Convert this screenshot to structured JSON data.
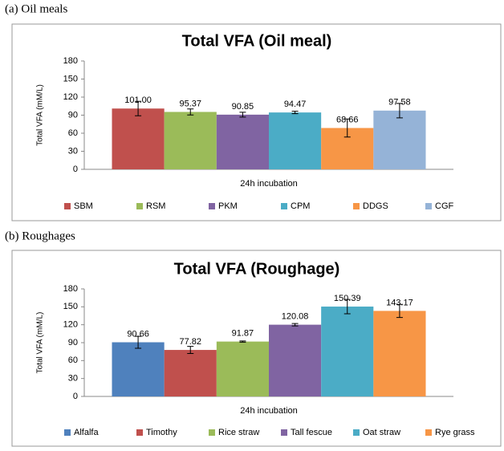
{
  "chart_data": [
    {
      "type": "bar",
      "panel_label": "(a)  Oil meals",
      "title": "Total VFA (Oil meal)",
      "y_label": "Total VFA (mM/L)",
      "categories": [
        "24h incubation"
      ],
      "ylim": [
        0,
        180
      ],
      "yticks": [
        0,
        30,
        60,
        90,
        120,
        150,
        180
      ],
      "series": [
        {
          "name": "SBM",
          "color": "#c0504d",
          "values": [
            101.0
          ],
          "errors": [
            12
          ],
          "value_labels": [
            "101.00"
          ]
        },
        {
          "name": "RSM",
          "color": "#9bbb59",
          "values": [
            95.37
          ],
          "errors": [
            5
          ],
          "value_labels": [
            "95.37"
          ]
        },
        {
          "name": "PKM",
          "color": "#8064a2",
          "values": [
            90.85
          ],
          "errors": [
            4
          ],
          "value_labels": [
            "90.85"
          ]
        },
        {
          "name": "CPM",
          "color": "#4bacc6",
          "values": [
            94.47
          ],
          "errors": [
            2
          ],
          "value_labels": [
            "94.47"
          ]
        },
        {
          "name": "DDGS",
          "color": "#f79646",
          "values": [
            68.66
          ],
          "errors": [
            15
          ],
          "value_labels": [
            "68.66"
          ]
        },
        {
          "name": "CGF",
          "color": "#95b3d7",
          "values": [
            97.58
          ],
          "errors": [
            12
          ],
          "value_labels": [
            "97.58"
          ]
        }
      ]
    },
    {
      "type": "bar",
      "panel_label": "(b)  Roughages",
      "title": "Total VFA (Roughage)",
      "y_label": "Total VFA (mM/L)",
      "categories": [
        "24h incubation"
      ],
      "ylim": [
        0,
        180
      ],
      "yticks": [
        0,
        30,
        60,
        90,
        120,
        150,
        180
      ],
      "series": [
        {
          "name": "Alfalfa",
          "color": "#4f81bd",
          "values": [
            90.66
          ],
          "errors": [
            10
          ],
          "value_labels": [
            "90.66"
          ]
        },
        {
          "name": "Timothy",
          "color": "#c0504d",
          "values": [
            77.82
          ],
          "errors": [
            6
          ],
          "value_labels": [
            "77.82"
          ]
        },
        {
          "name": "Rice straw",
          "color": "#9bbb59",
          "values": [
            91.87
          ],
          "errors": [
            1
          ],
          "value_labels": [
            "91.87"
          ]
        },
        {
          "name": "Tall fescue",
          "color": "#8064a2",
          "values": [
            120.08
          ],
          "errors": [
            2
          ],
          "value_labels": [
            "120.08"
          ]
        },
        {
          "name": "Oat straw",
          "color": "#4bacc6",
          "values": [
            150.39
          ],
          "errors": [
            12
          ],
          "value_labels": [
            "150.39"
          ]
        },
        {
          "name": "Rye grass",
          "color": "#f79646",
          "values": [
            143.17
          ],
          "errors": [
            11
          ],
          "value_labels": [
            "143.17"
          ]
        }
      ]
    }
  ]
}
